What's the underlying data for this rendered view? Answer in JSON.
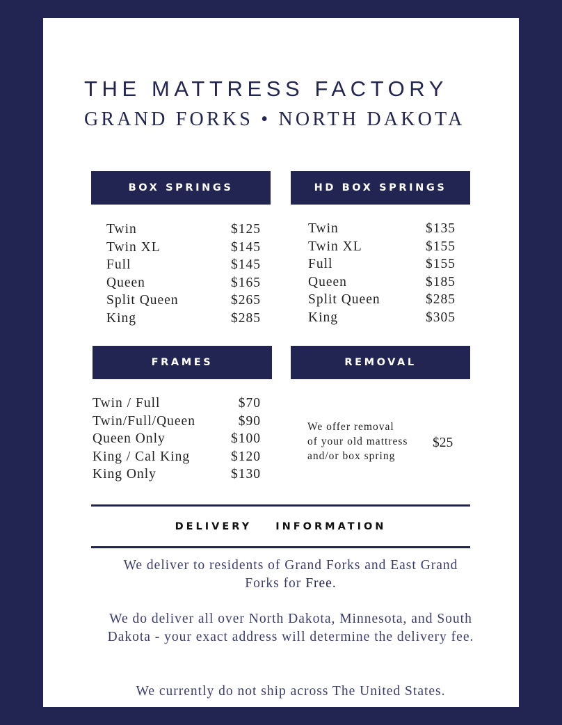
{
  "header": {
    "title": "THE MATTRESS FACTORY",
    "subtitle": "GRAND FORKS • NORTH DAKOTA"
  },
  "box_springs": {
    "heading": "BOX SPRINGS",
    "items": [
      {
        "name": "Twin",
        "price": "$125"
      },
      {
        "name": "Twin XL",
        "price": "$145"
      },
      {
        "name": "Full",
        "price": "$145"
      },
      {
        "name": "Queen",
        "price": "$165"
      },
      {
        "name": "Split Queen",
        "price": "$265"
      },
      {
        "name": "King",
        "price": "$285"
      }
    ]
  },
  "hd_box_springs": {
    "heading": "HD BOX SPRINGS",
    "items": [
      {
        "name": "Twin",
        "price": "$135"
      },
      {
        "name": "Twin XL",
        "price": "$155"
      },
      {
        "name": "Full",
        "price": "$155"
      },
      {
        "name": "Queen",
        "price": "$185"
      },
      {
        "name": "Split Queen",
        "price": "$285"
      },
      {
        "name": "King",
        "price": "$305"
      }
    ]
  },
  "frames": {
    "heading": "FRAMES",
    "items": [
      {
        "name": "Twin / Full",
        "price": "$70"
      },
      {
        "name": "Twin/Full/Queen",
        "price": "$90"
      },
      {
        "name": "Queen Only",
        "price": "$100"
      },
      {
        "name": "King / Cal King",
        "price": "$120"
      },
      {
        "name": "King Only",
        "price": "$130"
      }
    ]
  },
  "removal": {
    "heading": "REMOVAL",
    "lines": [
      "We offer removal",
      "of your old mattress",
      "and/or box spring"
    ],
    "price": "$25"
  },
  "delivery": {
    "heading": "DELIVERY  INFORMATION",
    "p1": "We deliver to residents of Grand Forks and East Grand Forks for",
    "p1_emph": "Free.",
    "p2": "We do deliver all over North Dakota, Minnesota, and South Dakota - your exact address will determine the delivery fee.",
    "p3": "We currently do not ship across The United States."
  },
  "colors": {
    "navy": "#222552",
    "background": "#ffffff"
  }
}
